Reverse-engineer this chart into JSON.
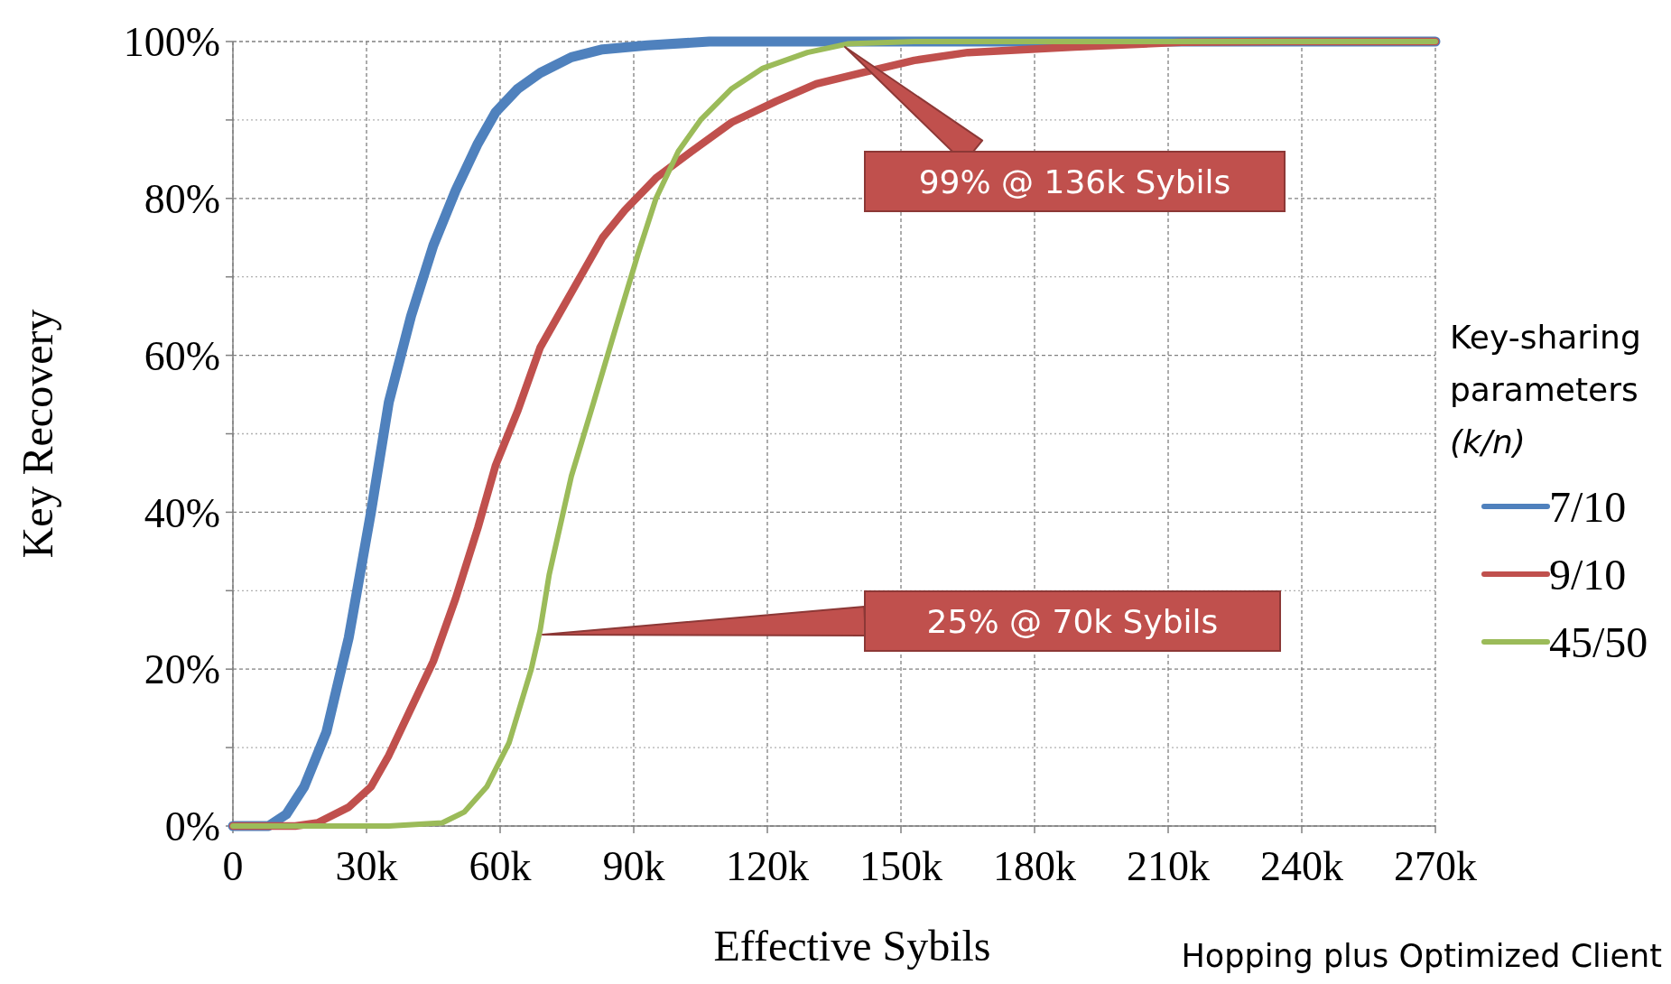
{
  "chart_data": {
    "type": "line",
    "xlabel": "Effective Sybils",
    "ylabel": "Key Recovery",
    "legend_title": "Key-sharing parameters (k/n)",
    "legend": "right",
    "grid": true,
    "marker": "none",
    "line_style": "solid",
    "xlim": [
      0,
      270
    ],
    "xticks": [
      {
        "value": 0,
        "label": "0"
      },
      {
        "value": 30,
        "label": "30k"
      },
      {
        "value": 60,
        "label": "60k"
      },
      {
        "value": 90,
        "label": "90k"
      },
      {
        "value": 120,
        "label": "120k"
      },
      {
        "value": 150,
        "label": "150k"
      },
      {
        "value": 180,
        "label": "180k"
      },
      {
        "value": 210,
        "label": "210k"
      },
      {
        "value": 240,
        "label": "240k"
      },
      {
        "value": 270,
        "label": "270k"
      }
    ],
    "ylim": [
      0,
      100
    ],
    "yticks": [
      {
        "value": 0,
        "label": "0%"
      },
      {
        "value": 10,
        "label": null
      },
      {
        "value": 20,
        "label": "20%"
      },
      {
        "value": 30,
        "label": null
      },
      {
        "value": 40,
        "label": "40%"
      },
      {
        "value": 50,
        "label": null
      },
      {
        "value": 60,
        "label": "60%"
      },
      {
        "value": 70,
        "label": null
      },
      {
        "value": 80,
        "label": "80%"
      },
      {
        "value": 90,
        "label": null
      },
      {
        "value": 100,
        "label": "100%"
      }
    ],
    "series": [
      {
        "name": "7/10",
        "color": "#4f81bd",
        "x": [
          0,
          8,
          12,
          16,
          21,
          26,
          31,
          35,
          40,
          45,
          50,
          55,
          59,
          64,
          69,
          76,
          83,
          93,
          107,
          150,
          200,
          270
        ],
        "values": [
          0,
          0,
          1.5,
          5,
          12,
          24,
          40,
          54,
          65,
          74,
          81,
          87,
          91,
          94,
          96,
          98,
          99,
          99.5,
          100,
          100,
          100,
          100
        ]
      },
      {
        "name": "9/10",
        "color": "#c0504d",
        "x": [
          0,
          14,
          19,
          26,
          31,
          35,
          40,
          45,
          50,
          55,
          59,
          64,
          69,
          74,
          79,
          83,
          88,
          95,
          103,
          112,
          122,
          131,
          141,
          153,
          165,
          189,
          213,
          234,
          270
        ],
        "values": [
          0,
          0,
          0.4,
          2.4,
          5,
          9,
          15,
          21,
          29,
          38,
          46,
          53,
          61,
          66,
          71,
          75,
          78.5,
          82.6,
          86,
          89.7,
          92.4,
          94.6,
          96,
          97.6,
          98.6,
          99.3,
          99.9,
          100,
          100
        ]
      },
      {
        "name": "45/50",
        "color": "#9bbb59",
        "x": [
          0,
          35,
          47,
          52,
          57,
          62,
          67,
          69,
          71,
          76,
          81,
          86,
          91,
          95,
          100,
          105,
          112,
          119,
          129,
          138,
          153,
          200,
          270
        ],
        "values": [
          0,
          0,
          0.4,
          1.8,
          5,
          10.6,
          20,
          25,
          32,
          44.6,
          54,
          63.6,
          73,
          80,
          86,
          90,
          94,
          96.6,
          98.6,
          99.7,
          100,
          100,
          100
        ]
      }
    ],
    "annotations": [
      "99% @ 136k Sybils",
      "25% @ 70k Sybils",
      "Hopping plus Optimized Client"
    ]
  }
}
